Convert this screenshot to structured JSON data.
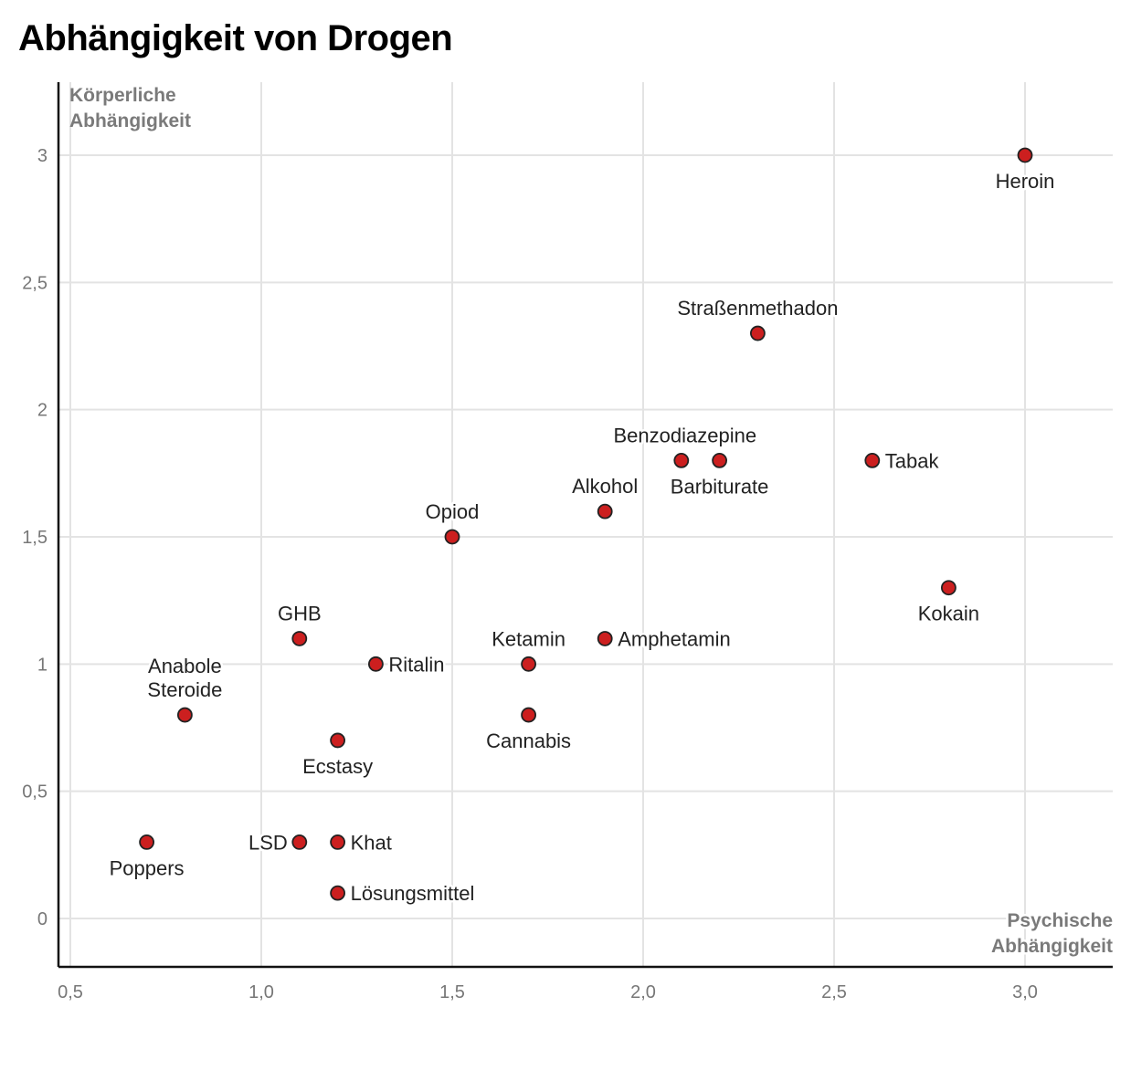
{
  "chart_data": {
    "type": "scatter",
    "title": "Abhängigkeit von Drogen",
    "xlabel": "Psychische Abhängigkeit",
    "ylabel": "Körperliche Abhängigkeit",
    "xlabel_lines": [
      "Psychische",
      "Abhängigkeit"
    ],
    "ylabel_lines": [
      "Körperliche",
      "Abhängigkeit"
    ],
    "xlim": [
      0.47,
      3.23
    ],
    "ylim": [
      -0.19,
      3.29
    ],
    "xticks": [
      0.5,
      1.0,
      1.5,
      2.0,
      2.5,
      3.0
    ],
    "xtick_labels": [
      "0,5",
      "1,0",
      "1,5",
      "2,0",
      "2,5",
      "3,0"
    ],
    "yticks": [
      0,
      0.5,
      1,
      1.5,
      2,
      2.5,
      3
    ],
    "ytick_labels": [
      "0",
      "0,5",
      "1",
      "1,5",
      "2",
      "2,5",
      "3"
    ],
    "grid": true,
    "marker_color": "#cc1f1f",
    "points": [
      {
        "label": "Heroin",
        "x": 3.0,
        "y": 3.0,
        "label_pos": "below"
      },
      {
        "label": "Straßenmethadon",
        "x": 2.3,
        "y": 2.3,
        "label_pos": "above"
      },
      {
        "label": "Benzodiazepine",
        "x": 2.1,
        "y": 1.8,
        "label_pos": "above-right"
      },
      {
        "label": "Barbiturate",
        "x": 2.2,
        "y": 1.8,
        "label_pos": "below"
      },
      {
        "label": "Tabak",
        "x": 2.6,
        "y": 1.8,
        "label_pos": "right"
      },
      {
        "label": "Alkohol",
        "x": 1.9,
        "y": 1.6,
        "label_pos": "above"
      },
      {
        "label": "Opiod",
        "x": 1.5,
        "y": 1.5,
        "label_pos": "above"
      },
      {
        "label": "Kokain",
        "x": 2.8,
        "y": 1.3,
        "label_pos": "below"
      },
      {
        "label": "GHB",
        "x": 1.1,
        "y": 1.1,
        "label_pos": "above"
      },
      {
        "label": "Amphetamin",
        "x": 1.9,
        "y": 1.1,
        "label_pos": "right"
      },
      {
        "label": "Ritalin",
        "x": 1.3,
        "y": 1.0,
        "label_pos": "right"
      },
      {
        "label": "Ketamin",
        "x": 1.7,
        "y": 1.0,
        "label_pos": "above"
      },
      {
        "label": "Anabole Steroide",
        "x": 0.8,
        "y": 0.8,
        "label_pos": "above"
      },
      {
        "label": "Cannabis",
        "x": 1.7,
        "y": 0.8,
        "label_pos": "below"
      },
      {
        "label": "Ecstasy",
        "x": 1.2,
        "y": 0.7,
        "label_pos": "below"
      },
      {
        "label": "Poppers",
        "x": 0.7,
        "y": 0.3,
        "label_pos": "below"
      },
      {
        "label": "LSD",
        "x": 1.1,
        "y": 0.3,
        "label_pos": "left"
      },
      {
        "label": "Khat",
        "x": 1.2,
        "y": 0.3,
        "label_pos": "right"
      },
      {
        "label": "Lösungsmittel",
        "x": 1.2,
        "y": 0.1,
        "label_pos": "right"
      }
    ]
  }
}
